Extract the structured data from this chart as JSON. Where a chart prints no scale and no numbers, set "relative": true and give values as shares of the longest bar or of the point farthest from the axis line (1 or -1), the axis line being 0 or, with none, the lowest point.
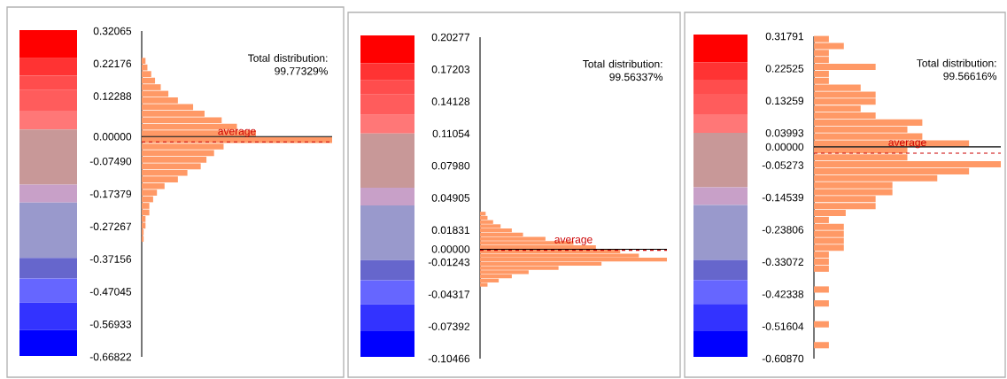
{
  "chart_data": [
    {
      "type": "bar",
      "orientation": "horizontal",
      "relative": true,
      "color": "#ff9966",
      "tick_labels": "y",
      "x": [
        -0.31,
        -0.29,
        -0.27,
        -0.25,
        -0.23,
        -0.21,
        -0.19,
        -0.17,
        -0.15,
        -0.13,
        -0.11,
        -0.09,
        -0.07,
        -0.05,
        -0.03,
        -0.01,
        0.01,
        0.03,
        0.05,
        0.07,
        0.09,
        0.11,
        0.13,
        0.15,
        0.17,
        0.19,
        0.21,
        0.23
      ],
      "values": [
        0.01,
        0.01,
        0.02,
        0.02,
        0.04,
        0.04,
        0.06,
        0.08,
        0.12,
        0.19,
        0.24,
        0.31,
        0.34,
        0.38,
        0.43,
        1.0,
        0.6,
        0.5,
        0.42,
        0.33,
        0.27,
        0.19,
        0.14,
        0.1,
        0.07,
        0.05,
        0.03,
        0.02
      ],
      "ylim": [
        -0.66822,
        0.32065
      ],
      "yticks": [
        {
          "value": -0.66822,
          "label": "-0.66822"
        },
        {
          "value": -0.56933,
          "label": "-0.56933"
        },
        {
          "value": -0.47045,
          "label": "-0.47045"
        },
        {
          "value": -0.37156,
          "label": "-0.37156"
        },
        {
          "value": -0.27267,
          "label": "-0.27267"
        },
        {
          "value": -0.17379,
          "label": "-0.17379"
        },
        {
          "value": -0.0749,
          "label": "-0.07490"
        },
        {
          "value": 0,
          "label": "0.00000"
        },
        {
          "value": 0.12288,
          "label": "0.12288"
        },
        {
          "value": 0.22176,
          "label": "0.22176"
        },
        {
          "value": 0.32065,
          "label": "0.32065"
        }
      ],
      "ref_lines": [
        {
          "axis": "y",
          "value": 0,
          "color": "#000000"
        },
        {
          "axis": "y",
          "value": -0.016,
          "label": "average",
          "color": "#cc0000",
          "line_style": "dashed"
        }
      ],
      "annotations": [
        "Total distribution: 99.77329%"
      ]
    },
    {
      "type": "bar",
      "orientation": "horizontal",
      "relative": true,
      "color": "#ff9966",
      "tick_labels": "y",
      "x": [
        -0.034,
        -0.03,
        -0.026,
        -0.022,
        -0.018,
        -0.014,
        -0.01,
        -0.006,
        -0.002,
        0.002,
        0.006,
        0.01,
        0.014,
        0.018,
        0.022,
        0.026,
        0.03,
        0.034
      ],
      "values": [
        0.04,
        0.1,
        0.17,
        0.26,
        0.42,
        0.65,
        1.0,
        0.85,
        0.75,
        0.62,
        0.5,
        0.35,
        0.23,
        0.17,
        0.11,
        0.07,
        0.04,
        0.03
      ],
      "ylim": [
        -0.10466,
        0.20277
      ],
      "yticks": [
        {
          "value": -0.10466,
          "label": "-0.10466"
        },
        {
          "value": -0.07392,
          "label": "-0.07392"
        },
        {
          "value": -0.04317,
          "label": "-0.04317"
        },
        {
          "value": -0.01243,
          "label": "-0.01243"
        },
        {
          "value": 0,
          "label": "0.00000"
        },
        {
          "value": 0.01831,
          "label": "0.01831"
        },
        {
          "value": 0.04905,
          "label": "0.04905"
        },
        {
          "value": 0.0798,
          "label": "0.07980"
        },
        {
          "value": 0.11054,
          "label": "0.11054"
        },
        {
          "value": 0.14128,
          "label": "0.14128"
        },
        {
          "value": 0.17203,
          "label": "0.17203"
        },
        {
          "value": 0.20277,
          "label": "0.20277"
        }
      ],
      "ref_lines": [
        {
          "axis": "y",
          "value": 0,
          "color": "#000000"
        },
        {
          "axis": "y",
          "value": -0.001,
          "label": "average",
          "color": "#cc0000",
          "line_style": "dashed"
        }
      ],
      "annotations": [
        "Total distribution: 99.56337%"
      ]
    },
    {
      "type": "bar",
      "orientation": "horizontal",
      "relative": true,
      "color": "#ff9966",
      "tick_labels": "y",
      "x": [
        -0.57,
        -0.55,
        -0.53,
        -0.51,
        -0.49,
        -0.47,
        -0.45,
        -0.43,
        -0.41,
        -0.39,
        -0.37,
        -0.35,
        -0.33,
        -0.31,
        -0.29,
        -0.27,
        -0.25,
        -0.23,
        -0.21,
        -0.19,
        -0.17,
        -0.15,
        -0.13,
        -0.11,
        -0.09,
        -0.07,
        -0.05,
        -0.03,
        -0.01,
        0.01,
        0.03,
        0.05,
        0.07,
        0.09,
        0.11,
        0.13,
        0.15,
        0.17,
        0.19,
        0.21,
        0.23,
        0.25,
        0.27,
        0.29,
        0.31
      ],
      "values": [
        0.08,
        0,
        0,
        0.08,
        0,
        0,
        0.08,
        0,
        0.08,
        0,
        0,
        0.08,
        0.08,
        0.08,
        0.16,
        0.16,
        0.16,
        0.16,
        0.08,
        0.17,
        0.33,
        0.33,
        0.42,
        0.42,
        0.66,
        0.83,
        1.0,
        0.5,
        0.5,
        0.83,
        0.58,
        0.5,
        0.58,
        0.33,
        0.25,
        0.33,
        0.33,
        0.25,
        0.08,
        0.08,
        0.33,
        0.08,
        0.08,
        0.16,
        0.08
      ],
      "ylim": [
        -0.6087,
        0.31791
      ],
      "yticks": [
        {
          "value": -0.6087,
          "label": "-0.60870"
        },
        {
          "value": -0.51604,
          "label": "-0.51604"
        },
        {
          "value": -0.42338,
          "label": "-0.42338"
        },
        {
          "value": -0.33072,
          "label": "-0.33072"
        },
        {
          "value": -0.23806,
          "label": "-0.23806"
        },
        {
          "value": -0.14539,
          "label": "-0.14539"
        },
        {
          "value": -0.05273,
          "label": "-0.05273"
        },
        {
          "value": 0,
          "label": "0.00000"
        },
        {
          "value": 0.03993,
          "label": "0.03993"
        },
        {
          "value": 0.13259,
          "label": "0.13259"
        },
        {
          "value": 0.22525,
          "label": "0.22525"
        },
        {
          "value": 0.31791,
          "label": "0.31791"
        }
      ],
      "ref_lines": [
        {
          "axis": "y",
          "value": 0,
          "color": "#000000"
        },
        {
          "axis": "y",
          "value": -0.018,
          "label": "average",
          "color": "#cc0000",
          "line_style": "dashed"
        }
      ],
      "annotations": [
        "Total distribution: 99.56616%"
      ]
    }
  ]
}
